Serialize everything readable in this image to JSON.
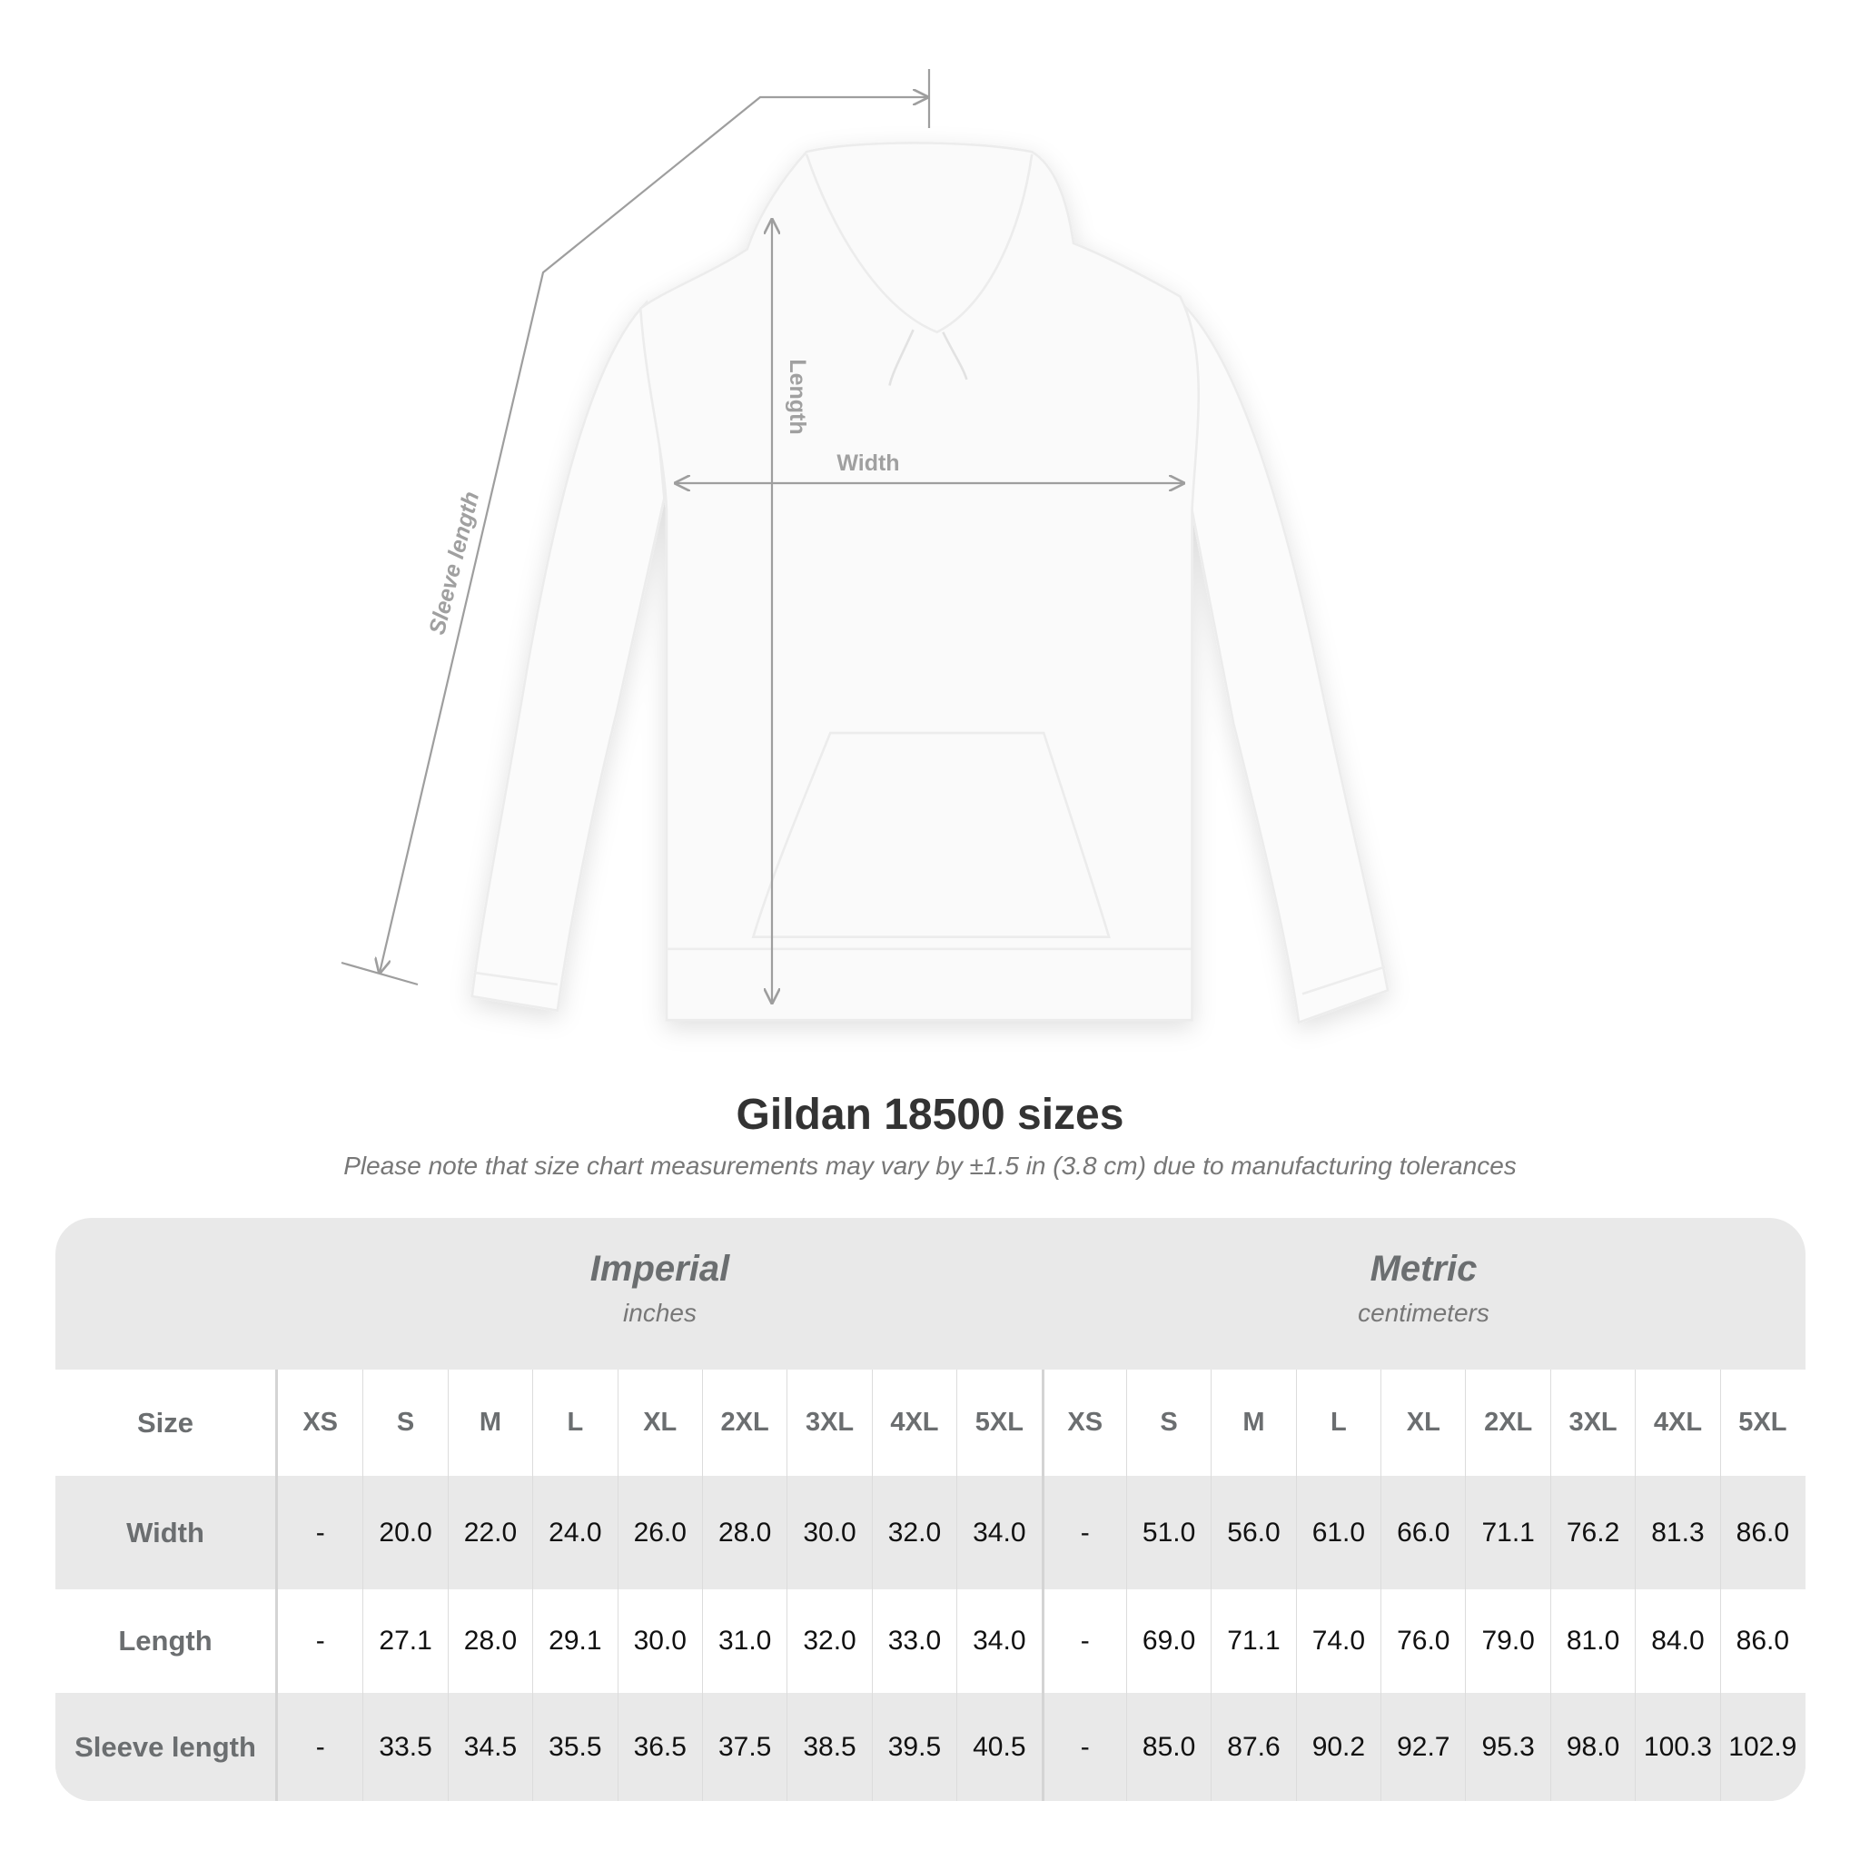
{
  "diagram": {
    "labels": {
      "sleeve": "Sleeve length",
      "length": "Length",
      "width": "Width"
    },
    "line_color": "#9e9e9e",
    "garment_color": "#fafafa"
  },
  "title": "Gildan 18500 sizes",
  "note": "Please note that size chart measurements may vary by ±1.5 in (3.8 cm) due to manufacturing tolerances",
  "table": {
    "imperial": {
      "name": "Imperial",
      "unit": "inches"
    },
    "metric": {
      "name": "Metric",
      "unit": "centimeters"
    },
    "size_label": "Size",
    "sizes": [
      "XS",
      "S",
      "M",
      "L",
      "XL",
      "2XL",
      "3XL",
      "4XL",
      "5XL"
    ],
    "rows": [
      {
        "label": "Width",
        "imperial": [
          "-",
          "20.0",
          "22.0",
          "24.0",
          "26.0",
          "28.0",
          "30.0",
          "32.0",
          "34.0"
        ],
        "metric": [
          "-",
          "51.0",
          "56.0",
          "61.0",
          "66.0",
          "71.1",
          "76.2",
          "81.3",
          "86.0"
        ]
      },
      {
        "label": "Length",
        "imperial": [
          "-",
          "27.1",
          "28.0",
          "29.1",
          "30.0",
          "31.0",
          "32.0",
          "33.0",
          "34.0"
        ],
        "metric": [
          "-",
          "69.0",
          "71.1",
          "74.0",
          "76.0",
          "79.0",
          "81.0",
          "84.0",
          "86.0"
        ]
      },
      {
        "label": "Sleeve length",
        "imperial": [
          "-",
          "33.5",
          "34.5",
          "35.5",
          "36.5",
          "37.5",
          "38.5",
          "39.5",
          "40.5"
        ],
        "metric": [
          "-",
          "85.0",
          "87.6",
          "90.2",
          "92.7",
          "95.3",
          "98.0",
          "100.3",
          "102.9"
        ]
      }
    ],
    "colors": {
      "band": "#e9e9e9",
      "header_text": "#6b6e70",
      "value_text": "#111111"
    }
  }
}
